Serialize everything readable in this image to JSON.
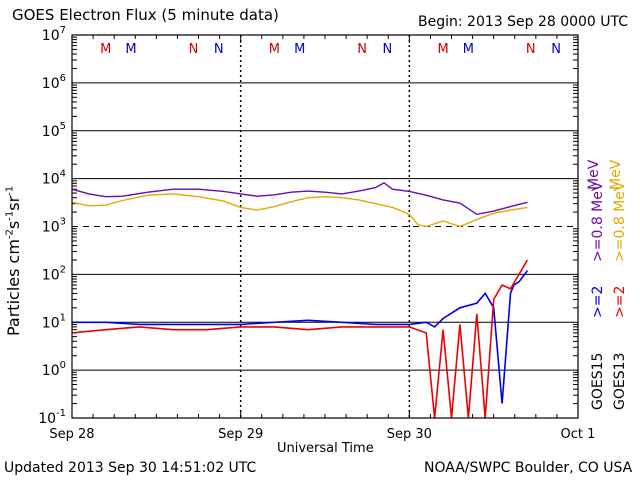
{
  "header": {
    "title": "GOES Electron Flux (5 minute data)",
    "begin": "Begin: 2013 Sep 28 0000 UTC"
  },
  "footer": {
    "updated": "Updated 2013 Sep 30 14:51:02 UTC",
    "credit": "NOAA/SWPC Boulder, CO USA"
  },
  "chart_data": {
    "type": "line",
    "title": "GOES Electron Flux (5 minute data)",
    "xlabel": "Universal Time",
    "ylabel": "Particles cm-2s-1sr-1",
    "yscale": "log",
    "ylim": [
      0.1,
      10000000
    ],
    "xlim_days": [
      0,
      3
    ],
    "x_tick_labels": [
      "Sep 28",
      "Sep 29",
      "Sep 30",
      "Oct 1"
    ],
    "y_tick_labels": [
      {
        "base": "10",
        "exp": "7"
      },
      {
        "base": "10",
        "exp": "6"
      },
      {
        "base": "10",
        "exp": "5"
      },
      {
        "base": "10",
        "exp": "4"
      },
      {
        "base": "10",
        "exp": "3"
      },
      {
        "base": "10",
        "exp": "2"
      },
      {
        "base": "10",
        "exp": "1"
      },
      {
        "base": "10",
        "exp": "0"
      },
      {
        "base": "10",
        "exp": "-1"
      }
    ],
    "threshold": 1000,
    "legend": {
      "goes15_label": "GOES15",
      "goes13_label": "GOES13",
      "purple_label": ">=0.8 MeV",
      "yellow_label": ">=0.8 MeV",
      "blue_label": ">=2",
      "red_label": ">=2",
      "units": "MeV"
    },
    "markers": [
      {
        "label": "M",
        "day": 0.2,
        "color": "#cc0000"
      },
      {
        "label": "M",
        "day": 0.35,
        "color": "#0000cc"
      },
      {
        "label": "N",
        "day": 0.72,
        "color": "#cc0000"
      },
      {
        "label": "N",
        "day": 0.87,
        "color": "#0000cc"
      },
      {
        "label": "M",
        "day": 1.2,
        "color": "#cc0000"
      },
      {
        "label": "M",
        "day": 1.35,
        "color": "#0000cc"
      },
      {
        "label": "N",
        "day": 1.72,
        "color": "#cc0000"
      },
      {
        "label": "N",
        "day": 1.87,
        "color": "#0000cc"
      },
      {
        "label": "M",
        "day": 2.2,
        "color": "#cc0000"
      },
      {
        "label": "M",
        "day": 2.35,
        "color": "#0000cc"
      },
      {
        "label": "N",
        "day": 2.72,
        "color": "#cc0000"
      },
      {
        "label": "N",
        "day": 2.87,
        "color": "#0000cc"
      }
    ],
    "series": [
      {
        "name": "GOES15 >=0.8 MeV",
        "color": "#6a0dad",
        "x": [
          0.0,
          0.1,
          0.2,
          0.3,
          0.45,
          0.6,
          0.75,
          0.9,
          1.0,
          1.1,
          1.2,
          1.3,
          1.4,
          1.5,
          1.6,
          1.7,
          1.8,
          1.85,
          1.9,
          2.0,
          2.1,
          2.2,
          2.3,
          2.4,
          2.5,
          2.6,
          2.7
        ],
        "y": [
          6000,
          4800,
          4200,
          4300,
          5200,
          6000,
          6000,
          5400,
          4800,
          4300,
          4600,
          5200,
          5500,
          5200,
          4800,
          5500,
          6500,
          8200,
          6000,
          5400,
          4500,
          3600,
          3100,
          1800,
          2100,
          2600,
          3200
        ]
      },
      {
        "name": "GOES13 >=0.8 MeV",
        "color": "#e6a800",
        "x": [
          0.0,
          0.1,
          0.2,
          0.3,
          0.45,
          0.6,
          0.75,
          0.9,
          1.0,
          1.1,
          1.2,
          1.3,
          1.4,
          1.5,
          1.6,
          1.7,
          1.8,
          1.9,
          2.0,
          2.05,
          2.1,
          2.2,
          2.3,
          2.4,
          2.5,
          2.6,
          2.7
        ],
        "y": [
          3200,
          2700,
          2800,
          3500,
          4500,
          4800,
          4200,
          3400,
          2500,
          2200,
          2600,
          3300,
          4000,
          4200,
          4000,
          3600,
          3000,
          2500,
          1800,
          1100,
          1000,
          1300,
          1000,
          1400,
          1900,
          2200,
          2500
        ]
      },
      {
        "name": "GOES15 >=2 MeV",
        "color": "#0000ee",
        "x": [
          0.0,
          0.2,
          0.4,
          0.6,
          0.8,
          1.0,
          1.2,
          1.4,
          1.6,
          1.8,
          2.0,
          2.1,
          2.15,
          2.2,
          2.3,
          2.4,
          2.45,
          2.5,
          2.55,
          2.6,
          2.62,
          2.65,
          2.7
        ],
        "y": [
          10,
          10,
          9,
          9,
          9,
          9,
          10,
          11,
          10,
          9,
          9,
          10,
          8,
          12,
          20,
          25,
          40,
          20,
          0.2,
          40,
          60,
          70,
          120
        ]
      },
      {
        "name": "GOES13 >=2 MeV",
        "color": "#ee0000",
        "x": [
          0.0,
          0.2,
          0.4,
          0.6,
          0.8,
          1.0,
          1.2,
          1.4,
          1.6,
          1.8,
          2.0,
          2.1,
          2.15,
          2.2,
          2.25,
          2.3,
          2.35,
          2.4,
          2.45,
          2.5,
          2.55,
          2.6,
          2.65,
          2.7
        ],
        "y": [
          6,
          7,
          8,
          7,
          7,
          8,
          8,
          7,
          8,
          8,
          8,
          6,
          0.1,
          7,
          0.1,
          9,
          0.1,
          15,
          0.1,
          30,
          60,
          50,
          100,
          200
        ]
      }
    ]
  }
}
